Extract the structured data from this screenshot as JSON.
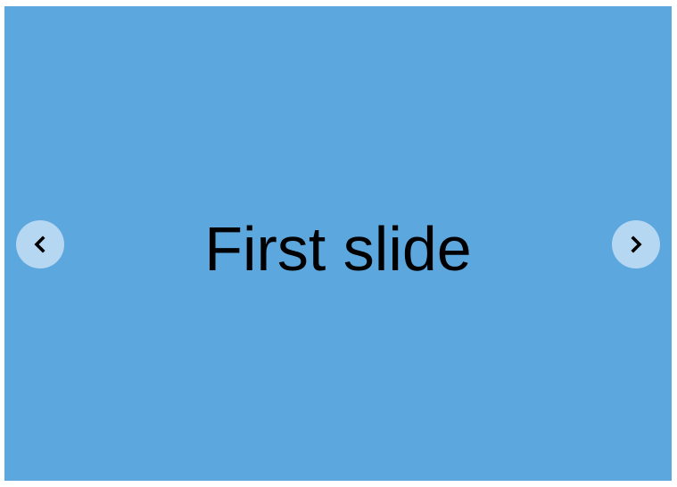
{
  "carousel": {
    "background_color": "#5DA7DF",
    "slide_text_color": "#000000",
    "button_color": "#FFFFFF",
    "current_slide": {
      "label": "First slide"
    },
    "controls": {
      "prev_icon": "chevron-left-icon",
      "next_icon": "chevron-right-icon"
    }
  }
}
